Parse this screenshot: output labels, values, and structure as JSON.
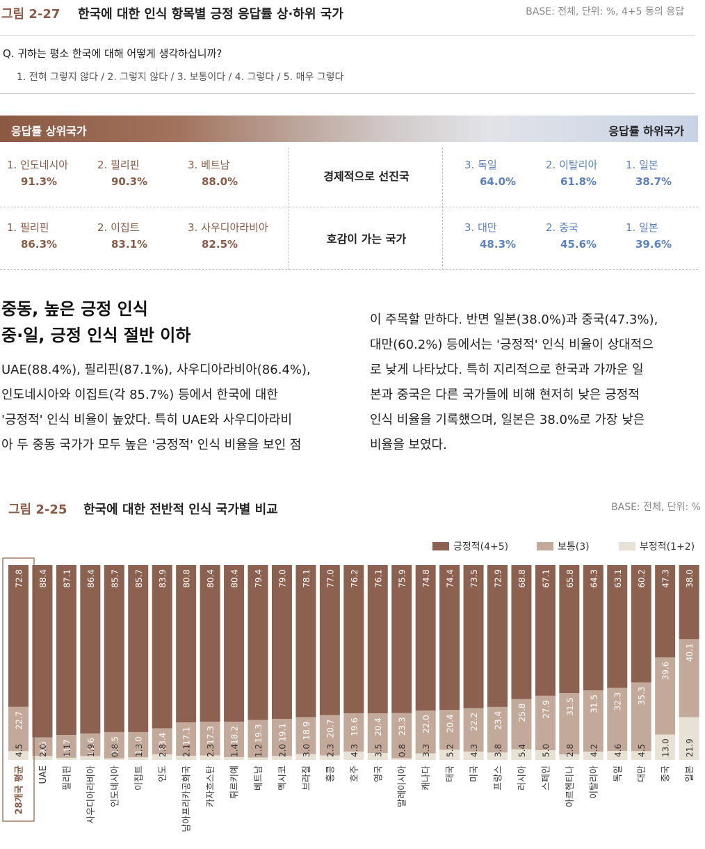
{
  "fig1": {
    "number": "그림 2-27",
    "title": "한국에 대한 인식 항목별 긍정 응답률 상·하위 국가",
    "base": "BASE: 전체, 단위: %, 4+5 동의 응답"
  },
  "question": "Q. 귀하는 평소 한국에 대해 어떻게 생각하십니까?",
  "scale": "1. 전혀 그렇지 않다 / 2. 그렇지 않다 / 3. 보통이다 / 4. 그렇다 / 5. 매우 그렇다",
  "band": {
    "left": "응답률 상위국가",
    "right": "응답률 하위국가"
  },
  "table": [
    {
      "criterion": "경제적으로 선진국",
      "top": [
        {
          "label": "1. 인도네시아",
          "value": "91.3%"
        },
        {
          "label": "2. 필리핀",
          "value": "90.3%"
        },
        {
          "label": "3. 베트남",
          "value": "88.0%"
        }
      ],
      "bottom": [
        {
          "label": "3. 독일",
          "value": "64.0%"
        },
        {
          "label": "2. 이탈리아",
          "value": "61.8%"
        },
        {
          "label": "1. 일본",
          "value": "38.7%"
        }
      ]
    },
    {
      "criterion": "호감이 가는 국가",
      "top": [
        {
          "label": "1. 필리핀",
          "value": "86.3%"
        },
        {
          "label": "2. 이집트",
          "value": "83.1%"
        },
        {
          "label": "3. 사우디아라비아",
          "value": "82.5%"
        }
      ],
      "bottom": [
        {
          "label": "3. 대만",
          "value": "48.3%"
        },
        {
          "label": "2. 중국",
          "value": "45.6%"
        },
        {
          "label": "1. 일본",
          "value": "39.6%"
        }
      ]
    }
  ],
  "section": {
    "heading_line1": "중동, 높은 긍정 인식",
    "heading_line2": "중·일, 긍정 인식 절반 이하",
    "left_lines": [
      "UAE(88.4%), 필리핀(87.1%), 사우디아라비아(86.4%),",
      "인도네시아와 이집트(각 85.7%) 등에서 한국에 대한",
      "'긍정적' 인식 비율이 높았다. 특히 UAE와 사우디아라비",
      "아 두 중동 국가가 모두 높은 '긍정적' 인식 비율을 보인 점"
    ],
    "right_lines": [
      "이 주목할 만하다. 반면 일본(38.0%)과 중국(47.3%),",
      "대만(60.2%) 등에서는 '긍정적' 인식 비율이 상대적으",
      "로 낮게 나타났다. 특히 지리적으로 한국과 가까운 일",
      "본과 중국은 다른 국가들에 비해 현저히 낮은 긍정적",
      "인식 비율을 기록했으며, 일본은 38.0%로 가장 낮은",
      "비율을 보였다."
    ]
  },
  "fig2": {
    "number": "그림 2-25",
    "title": "한국에 대한 전반적 인식 국가별 비교",
    "base": "BASE: 전체, 단위: %"
  },
  "colors": {
    "positive": "#8d6150",
    "neutral": "#c3a999",
    "negative": "#e8e1d6",
    "accent": "#8b5a44",
    "low": "#5a80c0"
  },
  "chart_data": {
    "type": "bar",
    "stacked": true,
    "orientation": "vertical",
    "legend": [
      "긍정적(4+5)",
      "보통(3)",
      "부정적(1+2)"
    ],
    "legend_position": "top-right",
    "categories": [
      "28개국 평균",
      "UAE",
      "필리핀",
      "사우디아라비아",
      "인도네시아",
      "이집트",
      "인도",
      "남아프리카공화국",
      "카자흐스탄",
      "튀르키예",
      "베트남",
      "멕시코",
      "브라질",
      "홍콩",
      "호주",
      "영국",
      "말레이시아",
      "캐나다",
      "태국",
      "미국",
      "프랑스",
      "러시아",
      "스페인",
      "아르헨티나",
      "이탈리아",
      "독일",
      "대만",
      "중국",
      "일본"
    ],
    "series": [
      {
        "name": "긍정적(4+5)",
        "values": [
          72.8,
          88.4,
          87.1,
          86.4,
          85.7,
          85.7,
          83.9,
          80.8,
          80.4,
          80.4,
          79.4,
          79.0,
          78.1,
          77.0,
          76.2,
          76.1,
          75.9,
          74.8,
          74.4,
          73.5,
          72.9,
          68.8,
          67.1,
          65.8,
          64.3,
          63.1,
          60.2,
          47.3,
          38.0
        ]
      },
      {
        "name": "보통(3)",
        "values": [
          22.7,
          9.6,
          11.7,
          11.6,
          13.5,
          13.0,
          13.4,
          17.1,
          17.3,
          18.2,
          19.3,
          19.1,
          18.9,
          20.7,
          19.6,
          20.4,
          23.3,
          22.0,
          20.4,
          22.2,
          23.4,
          25.8,
          27.9,
          31.5,
          31.5,
          32.3,
          35.3,
          39.6,
          40.1
        ]
      },
      {
        "name": "부정적(1+2)",
        "values": [
          4.5,
          2.0,
          1.1,
          1.9,
          0.8,
          1.3,
          2.8,
          2.1,
          2.3,
          1.4,
          1.2,
          2.0,
          3.0,
          2.3,
          4.3,
          3.5,
          0.8,
          3.3,
          5.2,
          4.3,
          3.8,
          5.4,
          5.0,
          2.8,
          4.2,
          4.6,
          4.5,
          13.0,
          21.9
        ]
      }
    ],
    "ylim": [
      0,
      100
    ]
  }
}
